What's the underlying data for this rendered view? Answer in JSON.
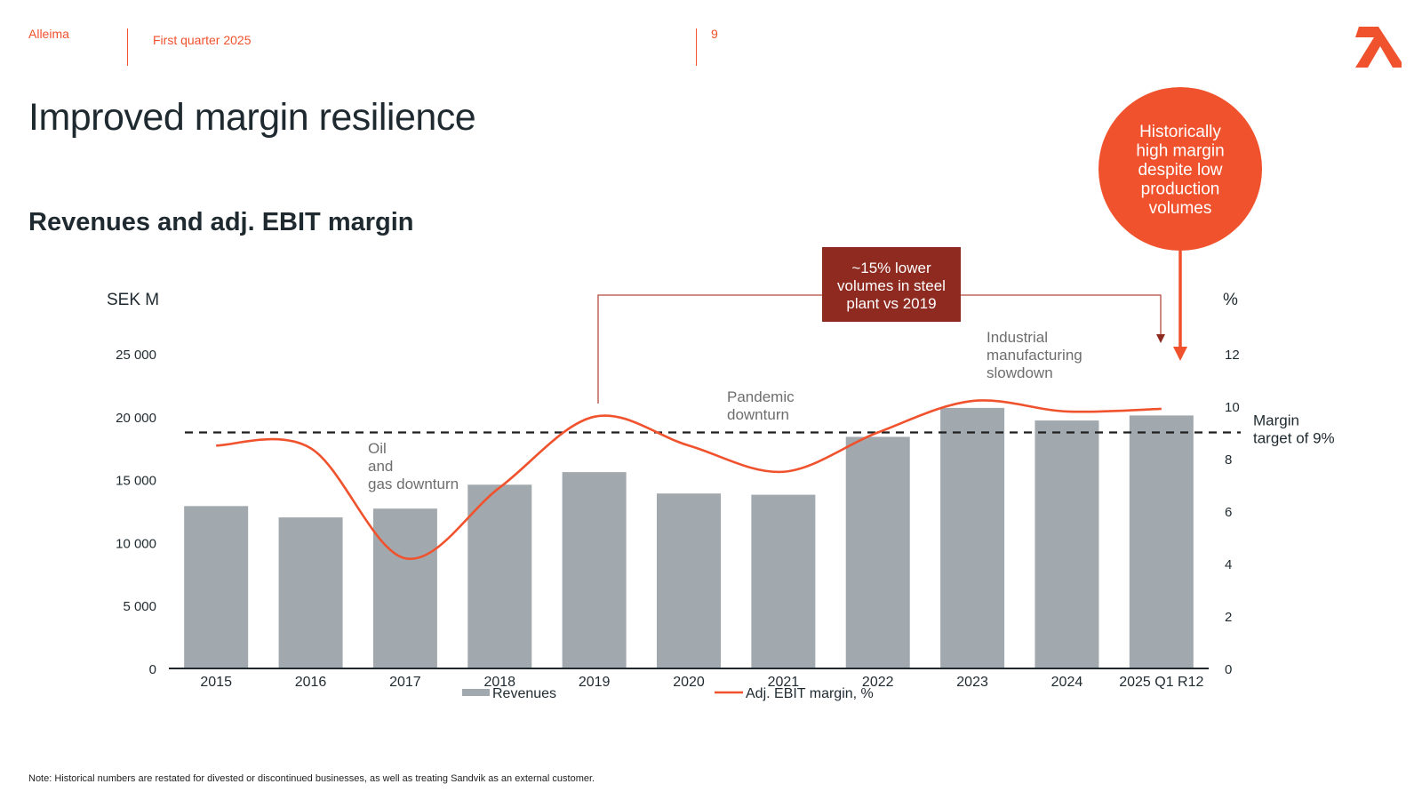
{
  "header": {
    "company": "Alleima",
    "period": "First quarter 2025",
    "page_number": "9"
  },
  "title": "Improved margin resilience",
  "subtitle": "Revenues and adj. EBIT margin",
  "footnote": "Note: Historical numbers are restated for divested or discontinued businesses, as well as treating Sandvik as an external customer.",
  "colors": {
    "accent": "#f0522d",
    "bars": "#a2a9ae",
    "callout_dark": "#8e2a20",
    "text": "#1f2a30"
  },
  "callouts": {
    "bubble": "Historically high margin despite low production volumes",
    "box": "~15% lower volumes in steel plant vs 2019",
    "margin_target": "Margin target of 9%"
  },
  "chart_data": {
    "type": "bar",
    "categories": [
      "2015",
      "2016",
      "2017",
      "2018",
      "2019",
      "2020",
      "2021",
      "2022",
      "2023",
      "2024",
      "2025 Q1 R12"
    ],
    "series": [
      {
        "name": "Revenues",
        "type": "bar",
        "axis": "left",
        "values": [
          12900,
          12000,
          12700,
          14600,
          15600,
          13900,
          13800,
          18400,
          20700,
          19700,
          20100
        ]
      },
      {
        "name": "Adj. EBIT margin, %",
        "type": "line",
        "axis": "right",
        "values": [
          8.5,
          8.4,
          4.2,
          6.9,
          9.6,
          8.5,
          7.5,
          9.0,
          10.2,
          9.8,
          9.9
        ]
      }
    ],
    "y_left": {
      "label": "SEK M",
      "min": 0,
      "max": 25000,
      "ticks": [
        "0",
        "5 000",
        "10 000",
        "15 000",
        "20 000",
        "25 000"
      ]
    },
    "y_right": {
      "label": "%",
      "min": 0,
      "max": 12,
      "ticks": [
        "0",
        "2",
        "4",
        "6",
        "8",
        "10",
        "12"
      ]
    },
    "target_line": {
      "value": 9,
      "style": "dashed"
    },
    "annotations": [
      {
        "text": "Oil and gas downturn",
        "near": "2017"
      },
      {
        "text": "Pandemic downturn",
        "near": "2021"
      },
      {
        "text": "Industrial manufacturing slowdown",
        "near": "2023"
      }
    ],
    "legend": [
      "Revenues",
      "Adj. EBIT margin, %"
    ],
    "legend_position": "bottom",
    "grid": false
  }
}
